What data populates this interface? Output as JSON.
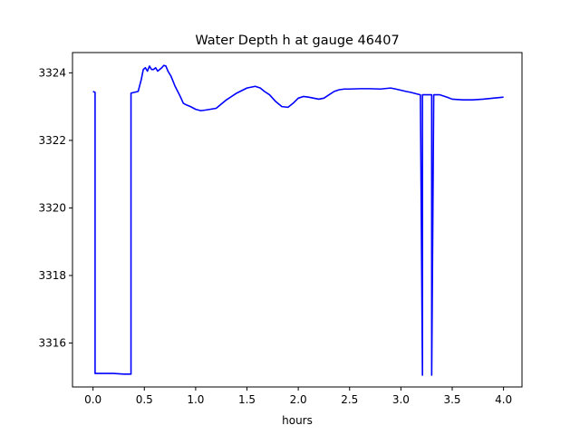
{
  "chart_data": {
    "type": "line",
    "title": "Water Depth h at gauge 46407",
    "xlabel": "hours",
    "ylabel": "",
    "xlim": [
      -0.2,
      4.18
    ],
    "ylim": [
      3314.7,
      3324.6
    ],
    "xticks": [
      0.0,
      0.5,
      1.0,
      1.5,
      2.0,
      2.5,
      3.0,
      3.5,
      4.0
    ],
    "xtick_labels": [
      "0.0",
      "0.5",
      "1.0",
      "1.5",
      "2.0",
      "2.5",
      "3.0",
      "3.5",
      "4.0"
    ],
    "yticks": [
      3316,
      3318,
      3320,
      3322,
      3324
    ],
    "ytick_labels": [
      "3316",
      "3318",
      "3320",
      "3322",
      "3324"
    ],
    "grid": false,
    "series": [
      {
        "color": "#0000ff",
        "x": [
          0.0,
          0.02,
          0.02,
          0.1,
          0.2,
          0.3,
          0.37,
          0.37,
          0.44,
          0.47,
          0.49,
          0.51,
          0.53,
          0.55,
          0.57,
          0.59,
          0.61,
          0.63,
          0.65,
          0.67,
          0.69,
          0.71,
          0.73,
          0.76,
          0.8,
          0.85,
          0.88,
          0.91,
          0.95,
          1.0,
          1.05,
          1.1,
          1.2,
          1.3,
          1.4,
          1.5,
          1.58,
          1.63,
          1.67,
          1.72,
          1.78,
          1.84,
          1.9,
          1.95,
          2.0,
          2.05,
          2.1,
          2.15,
          2.2,
          2.25,
          2.3,
          2.35,
          2.4,
          2.45,
          2.5,
          2.6,
          2.7,
          2.8,
          2.9,
          2.95,
          3.05,
          3.1,
          3.15,
          3.19,
          3.21,
          3.21,
          3.23,
          3.23,
          3.3,
          3.3,
          3.32,
          3.32,
          3.38,
          3.45,
          3.5,
          3.6,
          3.7,
          3.8,
          3.9,
          4.0
        ],
        "y": [
          3323.45,
          3323.42,
          3315.1,
          3315.1,
          3315.1,
          3315.08,
          3315.08,
          3323.4,
          3323.45,
          3323.8,
          3324.1,
          3324.15,
          3324.05,
          3324.2,
          3324.1,
          3324.1,
          3324.15,
          3324.05,
          3324.1,
          3324.15,
          3324.22,
          3324.2,
          3324.05,
          3323.9,
          3323.6,
          3323.3,
          3323.1,
          3323.05,
          3323.0,
          3322.92,
          3322.88,
          3322.9,
          3322.95,
          3323.2,
          3323.4,
          3323.55,
          3323.6,
          3323.55,
          3323.45,
          3323.35,
          3323.15,
          3323.0,
          3322.98,
          3323.1,
          3323.25,
          3323.3,
          3323.28,
          3323.25,
          3323.22,
          3323.25,
          3323.35,
          3323.45,
          3323.5,
          3323.52,
          3323.52,
          3323.53,
          3323.53,
          3323.52,
          3323.55,
          3323.52,
          3323.45,
          3323.42,
          3323.38,
          3323.35,
          3315.05,
          3323.35,
          3323.35,
          3323.35,
          3323.35,
          3315.05,
          3323.35,
          3323.35,
          3323.35,
          3323.28,
          3323.22,
          3323.2,
          3323.2,
          3323.22,
          3323.25,
          3323.28
        ]
      }
    ]
  }
}
